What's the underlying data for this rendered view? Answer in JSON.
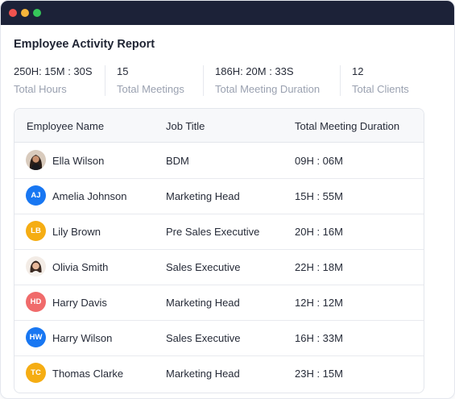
{
  "report": {
    "title": "Employee Activity Report"
  },
  "stats": [
    {
      "value": "250H: 15M : 30S",
      "label": "Total Hours"
    },
    {
      "value": "15",
      "label": "Total Meetings"
    },
    {
      "value": "186H: 20M : 33S",
      "label": "Total Meeting Duration"
    },
    {
      "value": "12",
      "label": "Total Clients"
    }
  ],
  "table": {
    "headers": [
      "Employee Name",
      "Job Title",
      "Total Meeting Duration"
    ],
    "rows": [
      {
        "name": "Ella Wilson",
        "title": "BDM",
        "duration": "09H : 06M",
        "initials": "",
        "avatar": "photo-female-dark"
      },
      {
        "name": "Amelia Johnson",
        "title": "Marketing Head",
        "duration": "15H : 55M",
        "initials": "AJ",
        "color": "#1877f2"
      },
      {
        "name": "Lily Brown",
        "title": "Pre Sales Executive",
        "duration": "20H : 16M",
        "initials": "LB",
        "color": "#f5ad13"
      },
      {
        "name": "Olivia Smith",
        "title": "Sales Executive",
        "duration": "22H : 18M",
        "initials": "",
        "avatar": "photo-female-light"
      },
      {
        "name": "Harry Davis",
        "title": "Marketing Head",
        "duration": "12H : 12M",
        "initials": "HD",
        "color": "#f06b6b"
      },
      {
        "name": "Harry Wilson",
        "title": "Sales Executive",
        "duration": "16H : 33M",
        "initials": "HW",
        "color": "#1877f2"
      },
      {
        "name": "Thomas Clarke",
        "title": "Marketing Head",
        "duration": "23H : 15M",
        "initials": "TC",
        "color": "#f5ad13"
      }
    ]
  }
}
